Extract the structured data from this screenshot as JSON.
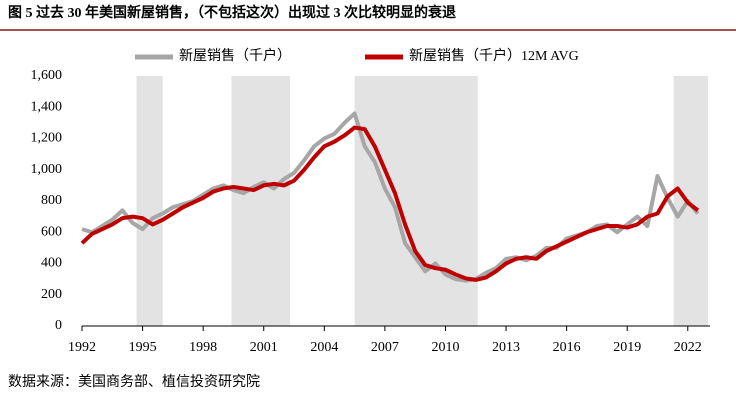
{
  "chart_data": {
    "type": "line",
    "title": "图 5 过去 30 年美国新屋销售，（不包括这次）出现过 3 次比较明显的衰退",
    "source": "数据来源：美国商务部、植信投资研究院",
    "xlim": [
      1992,
      2023.1
    ],
    "xticks": [
      1992,
      1995,
      1998,
      2001,
      2004,
      2007,
      2010,
      2013,
      2016,
      2019,
      2022
    ],
    "ylim": [
      0,
      1600
    ],
    "yticks": [
      0,
      200,
      400,
      600,
      800,
      {
        "value": 1000,
        "label": "1,000"
      },
      {
        "value": 1200,
        "label": "1,200"
      },
      {
        "value": 1400,
        "label": "1,400"
      },
      {
        "value": 1600,
        "label": "1,600"
      }
    ],
    "shaded_periods": [
      [
        1994.7,
        1996.0
      ],
      [
        1999.4,
        2002.3
      ],
      [
        2005.5,
        2011.6
      ],
      [
        2021.3,
        2023.0
      ]
    ],
    "shade_color": "#e3e3e3",
    "x": [
      1992,
      1992.5,
      1993,
      1993.5,
      1994,
      1994.5,
      1995,
      1995.5,
      1996,
      1996.5,
      1997,
      1997.5,
      1998,
      1998.5,
      1999,
      1999.5,
      2000,
      2000.5,
      2001,
      2001.5,
      2002,
      2002.5,
      2003,
      2003.5,
      2004,
      2004.5,
      2005,
      2005.5,
      2006,
      2006.5,
      2007,
      2007.5,
      2008,
      2008.5,
      2009,
      2009.5,
      2010,
      2010.5,
      2011,
      2011.5,
      2012,
      2012.5,
      2013,
      2013.5,
      2014,
      2014.5,
      2015,
      2015.5,
      2016,
      2016.5,
      2017,
      2017.5,
      2018,
      2018.5,
      2019,
      2019.5,
      2020,
      2020.5,
      2021,
      2021.5,
      2022,
      2022.5
    ],
    "series": [
      {
        "name": "新屋销售（千户）",
        "color": "#a6a6a6",
        "width": 4,
        "values": [
          620,
          600,
          640,
          680,
          740,
          660,
          620,
          690,
          720,
          760,
          780,
          800,
          840,
          880,
          900,
          870,
          850,
          890,
          920,
          880,
          940,
          980,
          1060,
          1150,
          1200,
          1230,
          1300,
          1360,
          1150,
          1050,
          880,
          760,
          530,
          440,
          350,
          400,
          330,
          300,
          290,
          300,
          340,
          370,
          430,
          440,
          420,
          450,
          500,
          500,
          560,
          580,
          600,
          640,
          650,
          600,
          650,
          700,
          640,
          960,
          820,
          700,
          800,
          720
        ]
      },
      {
        "name": "新屋销售（千户）12M AVG",
        "color": "#c00000",
        "width": 4,
        "values": [
          530,
          590,
          620,
          650,
          690,
          700,
          690,
          650,
          680,
          720,
          760,
          790,
          820,
          860,
          880,
          890,
          880,
          870,
          900,
          910,
          900,
          930,
          1000,
          1080,
          1150,
          1180,
          1220,
          1270,
          1260,
          1150,
          1000,
          850,
          650,
          480,
          390,
          370,
          360,
          330,
          305,
          295,
          310,
          350,
          400,
          430,
          440,
          430,
          480,
          510,
          540,
          570,
          600,
          620,
          640,
          640,
          630,
          650,
          700,
          720,
          830,
          880,
          790,
          740
        ]
      }
    ]
  }
}
